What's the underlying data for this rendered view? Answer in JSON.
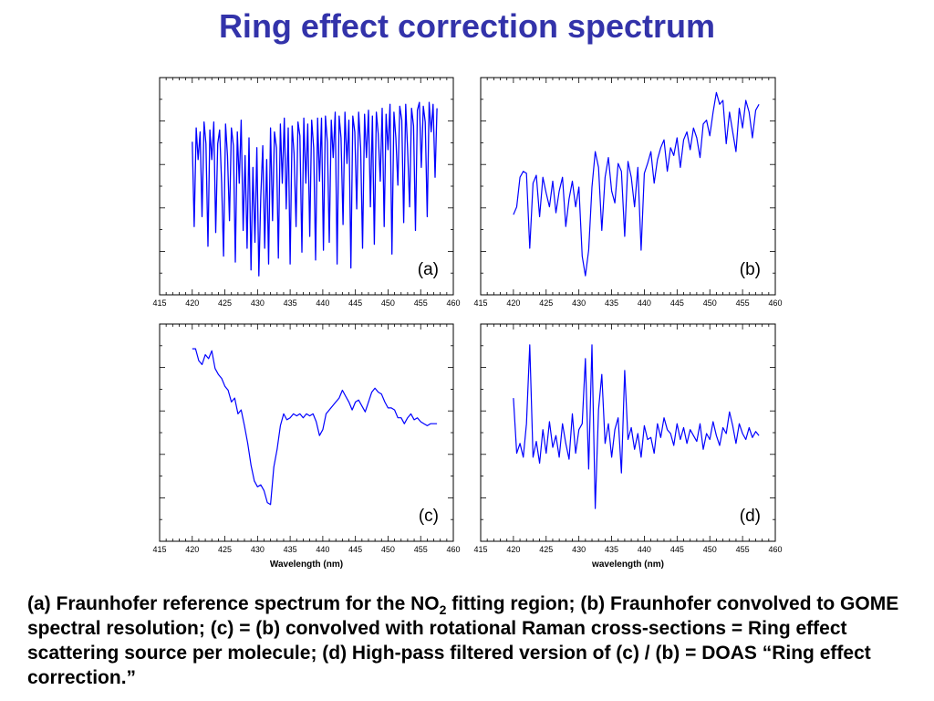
{
  "page": {
    "title": "Ring effect correction spectrum"
  },
  "caption": {
    "part1": "(a) Fraunhofer reference spectrum for the NO",
    "sub": "2",
    "part2": " fitting region; (b) Fraunhofer convolved to GOME spectral resolution; (c) = (b) convolved with rotational Raman cross-sections = Ring effect scattering source per molecule; (d) High-pass filtered version of (c) / (b) = DOAS “Ring effect correction.”"
  },
  "colors": {
    "title": "#3333aa",
    "trace": "#0000ff",
    "axes": "#000000"
  },
  "chart_data": [
    {
      "id": "a",
      "type": "line",
      "label": "(a)",
      "xlabel": "",
      "xlim": [
        415,
        460
      ],
      "ylim": [
        0,
        1
      ],
      "xticks": [
        415,
        420,
        425,
        430,
        435,
        440,
        445,
        450,
        455,
        460
      ],
      "series": [
        {
          "x": [
            420,
            420.3,
            420.6,
            420.9,
            421.2,
            421.5,
            421.8,
            422.1,
            422.4,
            422.7,
            423,
            423.3,
            423.6,
            423.9,
            424.2,
            424.5,
            424.8,
            425.1,
            425.4,
            425.7,
            426,
            426.3,
            426.6,
            426.9,
            427.2,
            427.5,
            427.8,
            428.1,
            428.4,
            428.7,
            429,
            429.3,
            429.6,
            429.9,
            430.2,
            430.5,
            430.8,
            431.1,
            431.4,
            431.7,
            432,
            432.3,
            432.6,
            432.9,
            433.2,
            433.5,
            433.8,
            434.1,
            434.4,
            434.7,
            435,
            435.3,
            435.6,
            435.9,
            436.2,
            436.5,
            436.8,
            437.1,
            437.4,
            437.7,
            438,
            438.3,
            438.6,
            438.9,
            439.2,
            439.5,
            439.8,
            440.1,
            440.4,
            440.7,
            441,
            441.3,
            441.6,
            441.9,
            442.2,
            442.5,
            442.8,
            443.1,
            443.4,
            443.7,
            444,
            444.3,
            444.6,
            444.9,
            445.2,
            445.5,
            445.8,
            446.1,
            446.4,
            446.7,
            447,
            447.3,
            447.6,
            447.9,
            448.2,
            448.5,
            448.8,
            449.1,
            449.4,
            449.7,
            450,
            450.3,
            450.6,
            450.9,
            451.2,
            451.5,
            451.8,
            452.1,
            452.4,
            452.7,
            453,
            453.3,
            453.6,
            453.9,
            454.2,
            454.5,
            454.8,
            455.1,
            455.4,
            455.7,
            456,
            456.3,
            456.6,
            456.9,
            457.2,
            457.5
          ],
          "y": [
            0.73,
            0.3,
            0.8,
            0.64,
            0.78,
            0.35,
            0.83,
            0.72,
            0.2,
            0.79,
            0.64,
            0.83,
            0.27,
            0.72,
            0.79,
            0.52,
            0.15,
            0.82,
            0.66,
            0.33,
            0.8,
            0.71,
            0.12,
            0.78,
            0.52,
            0.84,
            0.28,
            0.66,
            0.19,
            0.75,
            0.08,
            0.6,
            0.22,
            0.7,
            0.05,
            0.45,
            0.71,
            0.19,
            0.64,
            0.11,
            0.8,
            0.33,
            0.78,
            0.7,
            0.14,
            0.82,
            0.52,
            0.85,
            0.39,
            0.8,
            0.11,
            0.81,
            0.67,
            0.3,
            0.83,
            0.76,
            0.17,
            0.85,
            0.52,
            0.82,
            0.25,
            0.84,
            0.7,
            0.13,
            0.85,
            0.53,
            0.85,
            0.18,
            0.86,
            0.73,
            0.22,
            0.84,
            0.65,
            0.88,
            0.11,
            0.86,
            0.75,
            0.31,
            0.88,
            0.62,
            0.84,
            0.09,
            0.86,
            0.78,
            0.39,
            0.88,
            0.7,
            0.19,
            0.87,
            0.65,
            0.89,
            0.4,
            0.86,
            0.21,
            0.88,
            0.77,
            0.53,
            0.9,
            0.3,
            0.87,
            0.69,
            0.92,
            0.16,
            0.88,
            0.75,
            0.51,
            0.91,
            0.84,
            0.32,
            0.92,
            0.69,
            0.4,
            0.9,
            0.81,
            0.28,
            0.89,
            0.93,
            0.6,
            0.91,
            0.83,
            0.35,
            0.93,
            0.78,
            0.92,
            0.55,
            0.9
          ]
        }
      ]
    },
    {
      "id": "b",
      "type": "line",
      "label": "(b)",
      "xlabel": "",
      "xlim": [
        415,
        460
      ],
      "ylim": [
        0,
        1
      ],
      "xticks": [
        415,
        420,
        425,
        430,
        435,
        440,
        445,
        450,
        455,
        460
      ],
      "series": [
        {
          "x": [
            420,
            420.5,
            421,
            421.5,
            422,
            422.5,
            423,
            423.5,
            424,
            424.5,
            425,
            425.5,
            426,
            426.5,
            427,
            427.5,
            428,
            428.5,
            429,
            429.5,
            430,
            430.5,
            431,
            431.5,
            432,
            432.5,
            433,
            433.5,
            434,
            434.5,
            435,
            435.5,
            436,
            436.5,
            437,
            437.5,
            438,
            438.5,
            439,
            439.5,
            440,
            440.5,
            441,
            441.5,
            442,
            442.5,
            443,
            443.5,
            444,
            444.5,
            445,
            445.5,
            446,
            446.5,
            447,
            447.5,
            448,
            448.5,
            449,
            449.5,
            450,
            450.5,
            451,
            451.5,
            452,
            452.5,
            453,
            453.5,
            454,
            454.5,
            455,
            455.5,
            456,
            456.5,
            457,
            457.5
          ],
          "y": [
            0.36,
            0.4,
            0.55,
            0.58,
            0.57,
            0.19,
            0.52,
            0.56,
            0.35,
            0.55,
            0.47,
            0.4,
            0.53,
            0.37,
            0.48,
            0.55,
            0.3,
            0.44,
            0.53,
            0.4,
            0.5,
            0.15,
            0.05,
            0.18,
            0.5,
            0.68,
            0.6,
            0.28,
            0.55,
            0.65,
            0.48,
            0.42,
            0.62,
            0.58,
            0.25,
            0.63,
            0.55,
            0.4,
            0.6,
            0.18,
            0.57,
            0.62,
            0.68,
            0.52,
            0.64,
            0.7,
            0.74,
            0.58,
            0.7,
            0.66,
            0.75,
            0.6,
            0.74,
            0.78,
            0.69,
            0.8,
            0.75,
            0.65,
            0.82,
            0.84,
            0.76,
            0.88,
            0.98,
            0.92,
            0.94,
            0.72,
            0.88,
            0.78,
            0.68,
            0.9,
            0.8,
            0.94,
            0.88,
            0.75,
            0.89,
            0.92
          ]
        }
      ]
    },
    {
      "id": "c",
      "type": "line",
      "label": "(c)",
      "xlabel": "Wavelength (nm)",
      "xlim": [
        415,
        460
      ],
      "ylim": [
        0,
        1
      ],
      "xticks": [
        415,
        420,
        425,
        430,
        435,
        440,
        445,
        450,
        455,
        460
      ],
      "series": [
        {
          "x": [
            420,
            420.5,
            421,
            421.5,
            422,
            422.5,
            423,
            423.5,
            424,
            424.5,
            425,
            425.5,
            426,
            426.5,
            427,
            427.5,
            428,
            428.5,
            429,
            429.5,
            430,
            430.5,
            431,
            431.5,
            432,
            432.5,
            433,
            433.5,
            434,
            434.5,
            435,
            435.5,
            436,
            436.5,
            437,
            437.5,
            438,
            438.5,
            439,
            439.5,
            440,
            440.5,
            441,
            441.5,
            442,
            442.5,
            443,
            443.5,
            444,
            444.5,
            445,
            445.5,
            446,
            446.5,
            447,
            447.5,
            448,
            448.5,
            449,
            449.5,
            450,
            450.5,
            451,
            451.5,
            452,
            452.5,
            453,
            453.5,
            454,
            454.5,
            455,
            455.5,
            456,
            456.5,
            457,
            457.5
          ],
          "y": [
            0.93,
            0.93,
            0.87,
            0.85,
            0.9,
            0.88,
            0.92,
            0.83,
            0.8,
            0.78,
            0.74,
            0.72,
            0.66,
            0.68,
            0.6,
            0.62,
            0.54,
            0.45,
            0.34,
            0.26,
            0.23,
            0.24,
            0.21,
            0.15,
            0.14,
            0.33,
            0.42,
            0.54,
            0.6,
            0.57,
            0.58,
            0.6,
            0.59,
            0.6,
            0.58,
            0.6,
            0.59,
            0.6,
            0.56,
            0.49,
            0.52,
            0.6,
            0.62,
            0.64,
            0.66,
            0.68,
            0.72,
            0.69,
            0.66,
            0.62,
            0.66,
            0.67,
            0.64,
            0.61,
            0.66,
            0.71,
            0.73,
            0.71,
            0.7,
            0.66,
            0.63,
            0.63,
            0.62,
            0.58,
            0.58,
            0.55,
            0.58,
            0.6,
            0.57,
            0.58,
            0.56,
            0.55,
            0.54,
            0.55,
            0.55,
            0.55
          ]
        }
      ]
    },
    {
      "id": "d",
      "type": "line",
      "label": "(d)",
      "xlabel": "wavelength (nm)",
      "xlim": [
        415,
        460
      ],
      "ylim": [
        0,
        1
      ],
      "xticks": [
        415,
        420,
        425,
        430,
        435,
        440,
        445,
        450,
        455,
        460
      ],
      "series": [
        {
          "x": [
            420,
            420.5,
            421,
            421.5,
            422,
            422.5,
            423,
            423.5,
            424,
            424.5,
            425,
            425.5,
            426,
            426.5,
            427,
            427.5,
            428,
            428.5,
            429,
            429.5,
            430,
            430.5,
            431,
            431.5,
            432,
            432.5,
            433,
            433.5,
            434,
            434.5,
            435,
            435.5,
            436,
            436.5,
            437,
            437.5,
            438,
            438.5,
            439,
            439.5,
            440,
            440.5,
            441,
            441.5,
            442,
            442.5,
            443,
            443.5,
            444,
            444.5,
            445,
            445.5,
            446,
            446.5,
            447,
            447.5,
            448,
            448.5,
            449,
            449.5,
            450,
            450.5,
            451,
            451.5,
            452,
            452.5,
            453,
            453.5,
            454,
            454.5,
            455,
            455.5,
            456,
            456.5,
            457,
            457.5
          ],
          "y": [
            0.68,
            0.4,
            0.45,
            0.38,
            0.55,
            0.95,
            0.38,
            0.46,
            0.35,
            0.52,
            0.4,
            0.56,
            0.43,
            0.49,
            0.38,
            0.55,
            0.45,
            0.37,
            0.6,
            0.4,
            0.52,
            0.55,
            0.88,
            0.32,
            0.95,
            0.12,
            0.62,
            0.8,
            0.45,
            0.55,
            0.38,
            0.52,
            0.58,
            0.3,
            0.82,
            0.47,
            0.53,
            0.42,
            0.5,
            0.38,
            0.54,
            0.47,
            0.48,
            0.4,
            0.55,
            0.48,
            0.58,
            0.52,
            0.5,
            0.44,
            0.55,
            0.47,
            0.53,
            0.45,
            0.52,
            0.49,
            0.46,
            0.55,
            0.42,
            0.5,
            0.47,
            0.56,
            0.49,
            0.44,
            0.53,
            0.5,
            0.61,
            0.54,
            0.45,
            0.55,
            0.5,
            0.47,
            0.53,
            0.48,
            0.51,
            0.49
          ]
        }
      ]
    }
  ]
}
